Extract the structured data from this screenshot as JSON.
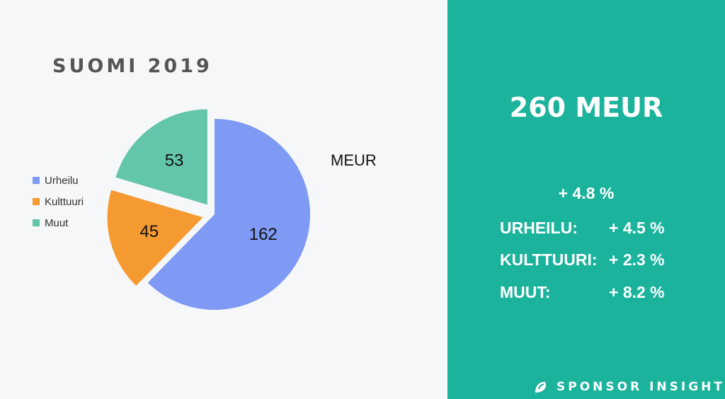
{
  "left_panel": {
    "title": "SUOMI 2019"
  },
  "chart_data": {
    "type": "pie",
    "unit": "MEUR",
    "categories": [
      "Urheilu",
      "Kulttuuri",
      "Muut"
    ],
    "values": [
      162,
      45,
      53
    ],
    "colors": [
      "#7e9af5",
      "#f59a30",
      "#63c5a9"
    ],
    "exploded": [
      "Kulttuuri",
      "Muut"
    ],
    "legend": [
      "Urheilu",
      "Kulttuuri",
      "Muut"
    ],
    "legend_position": "left"
  },
  "right_panel": {
    "headline": "260 MEUR",
    "total_change": "+ 4.8 %",
    "stats": [
      {
        "label": "URHEILU:",
        "value": "+ 4.5 %"
      },
      {
        "label": "KULTTUURI:",
        "value": "+ 2.3 %"
      },
      {
        "label": "MUUT:",
        "value": "+ 8.2 %"
      }
    ]
  },
  "footer": {
    "brand": "SPONSOR INSIGHT",
    "logo_icon": "sponsor-insight-logo-icon"
  }
}
